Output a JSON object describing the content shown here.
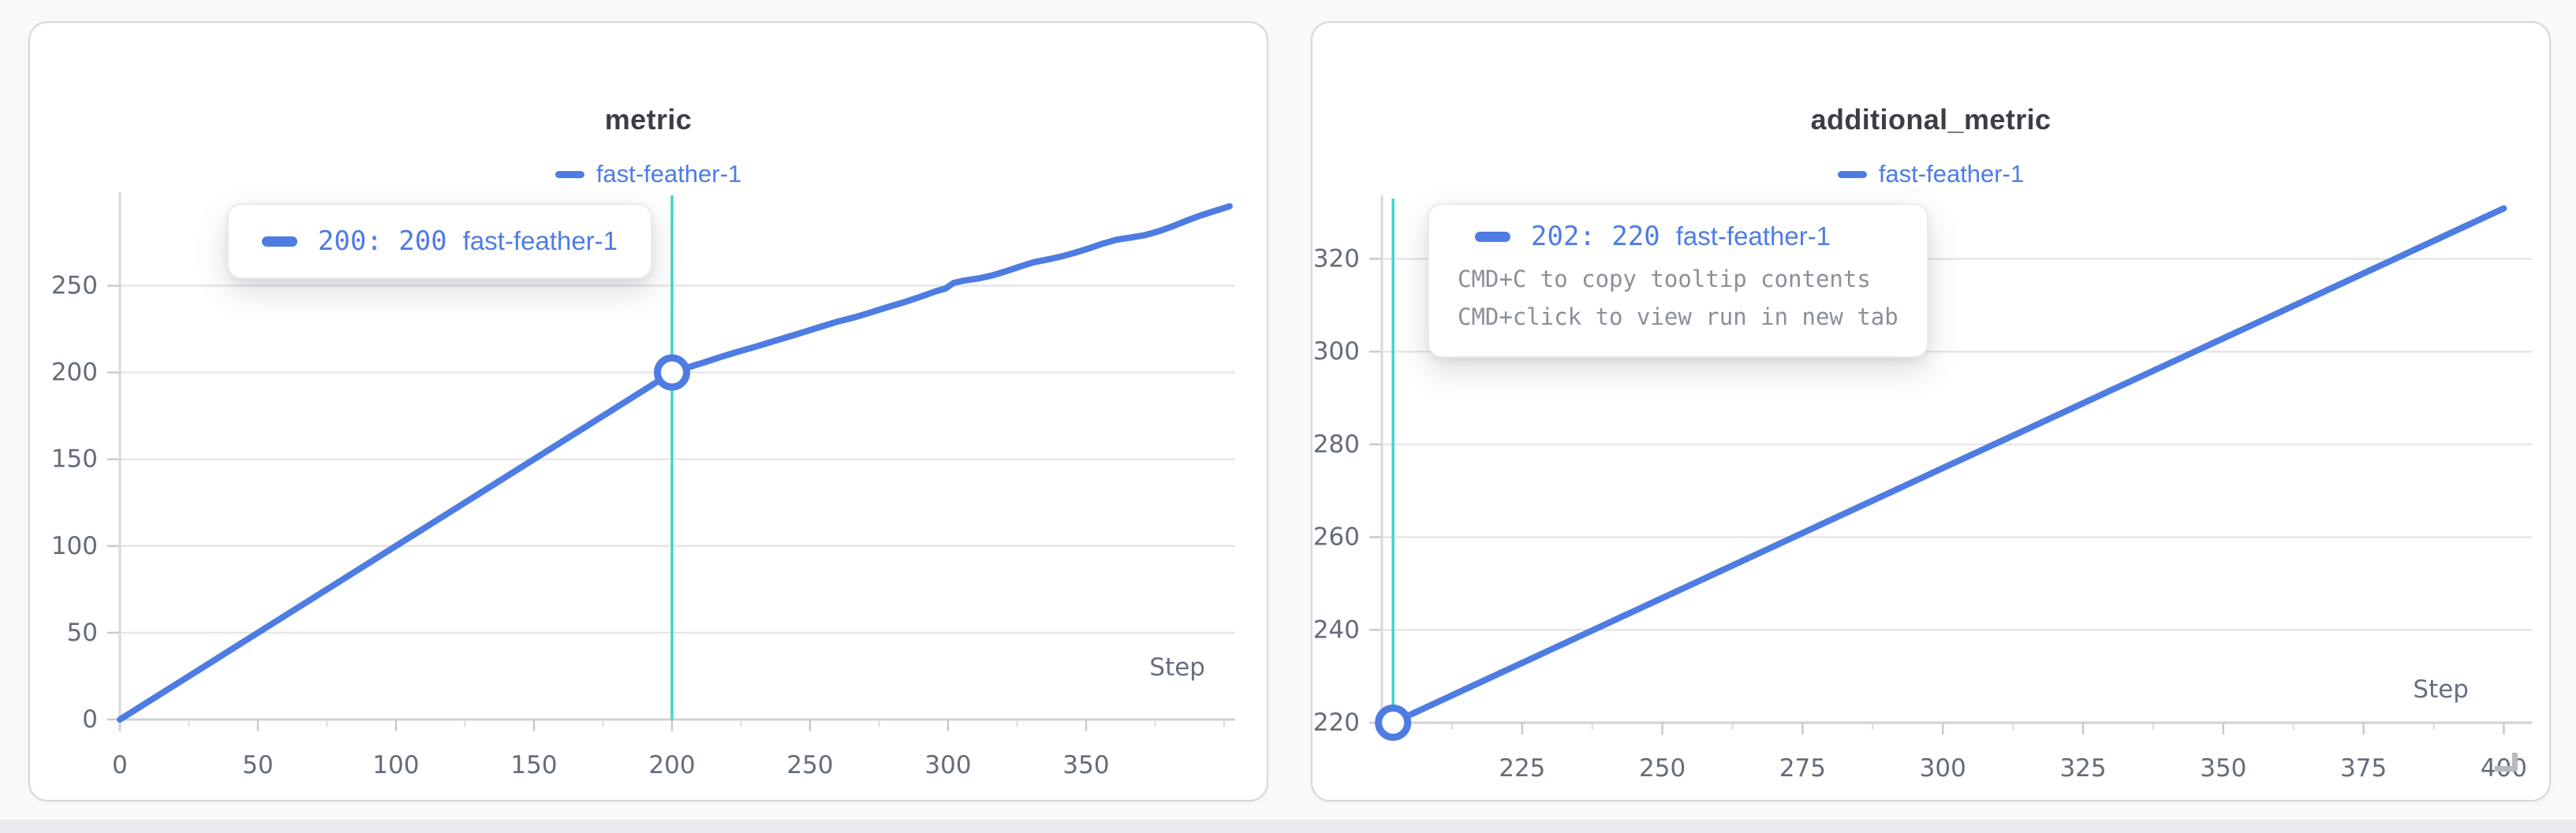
{
  "ui": {
    "background_color": "#fafafa",
    "card_background": "#ffffff",
    "accent_blue": "#4e7ce2",
    "crosshair_teal": "#3fd6cd",
    "grid_color": "#e4e6e9",
    "axis_baseline_color": "#ced1d6",
    "tick_label_color": "#646c79",
    "title_color": "#3a3f46",
    "tooltip_hint_color": "#8a9099",
    "resize_handle_color": "#b6bac1"
  },
  "chart_data": [
    {
      "type": "line",
      "title": "metric",
      "xlabel": "Step",
      "legend_position": "top",
      "grid": true,
      "x_domain": [
        0,
        404
      ],
      "y_domain": [
        0,
        302
      ],
      "x_ticks": [
        0,
        50,
        100,
        150,
        200,
        250,
        300,
        350
      ],
      "y_ticks": [
        0,
        50,
        100,
        150,
        200,
        250
      ],
      "series": [
        {
          "name": "fast-feather-1",
          "color": "#4e7ce2",
          "points": [
            [
              0,
              0
            ],
            [
              25,
              25
            ],
            [
              50,
              50
            ],
            [
              75,
              75
            ],
            [
              100,
              100
            ],
            [
              125,
              125
            ],
            [
              150,
              150
            ],
            [
              175,
              175
            ],
            [
              200,
              200
            ],
            [
              206,
              203
            ],
            [
              212,
              206
            ],
            [
              218,
              209.1
            ],
            [
              224,
              212
            ],
            [
              230,
              214.7
            ],
            [
              236,
              217.6
            ],
            [
              242,
              220.5
            ],
            [
              248,
              223.4
            ],
            [
              254,
              226.4
            ],
            [
              260,
              229.3
            ],
            [
              266,
              231.7
            ],
            [
              272,
              234.6
            ],
            [
              278,
              237.6
            ],
            [
              284,
              240.4
            ],
            [
              290,
              243.6
            ],
            [
              296,
              247
            ],
            [
              299,
              248.3
            ],
            [
              302,
              251.6
            ],
            [
              306,
              253
            ],
            [
              311,
              254.2
            ],
            [
              316,
              255.9
            ],
            [
              321,
              258.3
            ],
            [
              326,
              261
            ],
            [
              331,
              263.5
            ],
            [
              336,
              265.1
            ],
            [
              341,
              266.8
            ],
            [
              346,
              269
            ],
            [
              351,
              271.5
            ],
            [
              356,
              274.2
            ],
            [
              361,
              276.5
            ],
            [
              366,
              277.7
            ],
            [
              371,
              279
            ],
            [
              376,
              281.2
            ],
            [
              381,
              284
            ],
            [
              386,
              287.2
            ],
            [
              391,
              290.2
            ],
            [
              396,
              292.8
            ],
            [
              400,
              294.8
            ],
            [
              402,
              295.8
            ]
          ]
        }
      ],
      "crosshair_x": 200,
      "highlight_point": {
        "x": 200,
        "y": 200
      },
      "tooltip": {
        "value_text": "200: 200",
        "run_name": "fast-feather-1"
      }
    },
    {
      "type": "line",
      "title": "additional_metric",
      "xlabel": "Step",
      "legend_position": "top",
      "grid": true,
      "x_domain": [
        200,
        405
      ],
      "y_domain": [
        220,
        333
      ],
      "x_ticks": [
        225,
        250,
        275,
        300,
        325,
        350,
        375,
        400
      ],
      "y_ticks": [
        220,
        240,
        260,
        280,
        300,
        320
      ],
      "series": [
        {
          "name": "fast-feather-1",
          "color": "#4e7ce2",
          "points": [
            [
              202,
              220
            ],
            [
              227,
              234
            ],
            [
              252,
              248
            ],
            [
              277,
              262
            ],
            [
              302,
              276
            ],
            [
              327,
              290
            ],
            [
              352,
              304
            ],
            [
              377,
              318
            ],
            [
              400,
              330.9
            ]
          ]
        }
      ],
      "crosshair_x": 202,
      "highlight_point": {
        "x": 202,
        "y": 220
      },
      "tooltip": {
        "value_text": "202: 220",
        "run_name": "fast-feather-1",
        "hints": [
          "CMD+C to copy tooltip contents",
          "CMD+click to view run in new tab"
        ]
      }
    }
  ]
}
